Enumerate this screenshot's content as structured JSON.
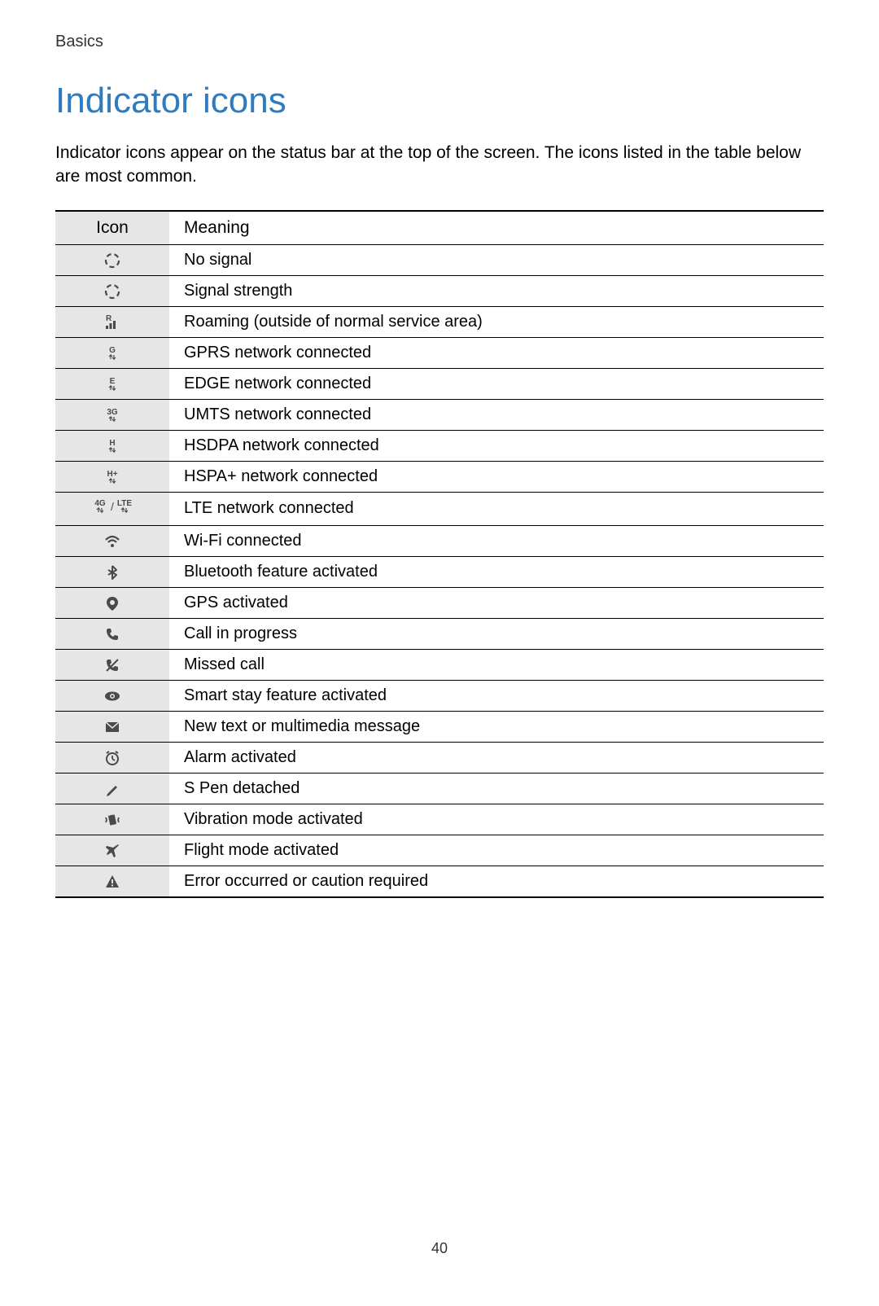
{
  "breadcrumb": "Basics",
  "title": "Indicator icons",
  "intro": "Indicator icons appear on the status bar at the top of the screen. The icons listed in the table below are most common.",
  "header": {
    "icon": "Icon",
    "meaning": "Meaning"
  },
  "rows": [
    {
      "icon": "no-signal",
      "meaning": "No signal"
    },
    {
      "icon": "signal-strength",
      "meaning": "Signal strength"
    },
    {
      "icon": "roaming",
      "meaning": "Roaming (outside of normal service area)"
    },
    {
      "icon": "gprs",
      "meaning": "GPRS network connected"
    },
    {
      "icon": "edge",
      "meaning": "EDGE network connected"
    },
    {
      "icon": "umts",
      "meaning": "UMTS network connected"
    },
    {
      "icon": "hsdpa",
      "meaning": "HSDPA network connected"
    },
    {
      "icon": "hspa-plus",
      "meaning": "HSPA+ network connected"
    },
    {
      "icon": "lte",
      "meaning": "LTE network connected"
    },
    {
      "icon": "wifi",
      "meaning": "Wi-Fi connected"
    },
    {
      "icon": "bluetooth",
      "meaning": "Bluetooth feature activated"
    },
    {
      "icon": "gps",
      "meaning": "GPS activated"
    },
    {
      "icon": "call",
      "meaning": "Call in progress"
    },
    {
      "icon": "missed-call",
      "meaning": "Missed call"
    },
    {
      "icon": "smart-stay",
      "meaning": "Smart stay feature activated"
    },
    {
      "icon": "message",
      "meaning": "New text or multimedia message"
    },
    {
      "icon": "alarm",
      "meaning": "Alarm activated"
    },
    {
      "icon": "spen",
      "meaning": "S Pen detached"
    },
    {
      "icon": "vibration",
      "meaning": "Vibration mode activated"
    },
    {
      "icon": "flight",
      "meaning": "Flight mode activated"
    },
    {
      "icon": "error",
      "meaning": "Error occurred or caution required"
    }
  ],
  "icon_labels": {
    "gprs": "G",
    "edge": "E",
    "umts": "3G",
    "hsdpa": "H",
    "hspa-plus": "H+",
    "lte_4g": "4G",
    "lte_lte": "LTE",
    "roaming": "R"
  },
  "page_number": "40",
  "colors": {
    "title": "#2f7bbf",
    "icon": "#4a4a4a",
    "icon_bg": "#e6e6e6",
    "border": "#000000",
    "background": "#ffffff"
  }
}
